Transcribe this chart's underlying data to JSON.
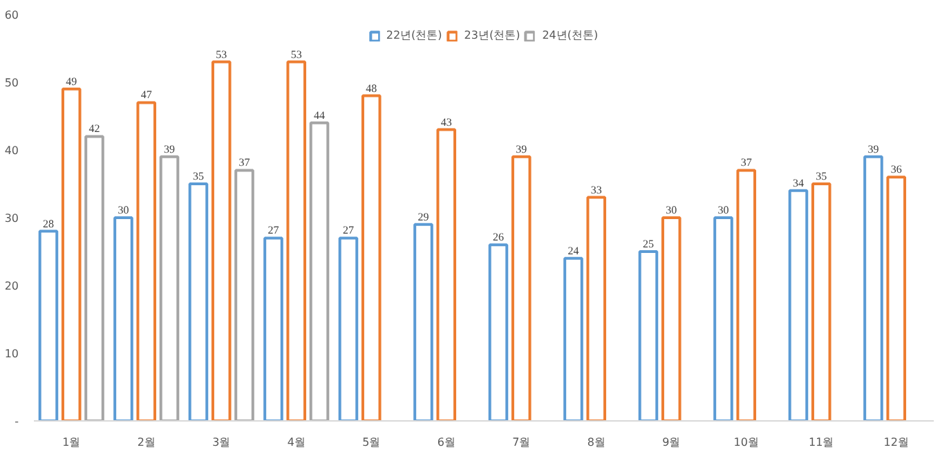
{
  "chart_data": {
    "type": "bar",
    "categories": [
      "1월",
      "2월",
      "3월",
      "4월",
      "5월",
      "6월",
      "7월",
      "8월",
      "9월",
      "10월",
      "11월",
      "12월"
    ],
    "series": [
      {
        "name": "22년(천톤)",
        "color": "#5b9bd5",
        "values": [
          28,
          30,
          35,
          27,
          27,
          29,
          26,
          24,
          25,
          30,
          34,
          39
        ]
      },
      {
        "name": "23년(천톤)",
        "color": "#ed7d31",
        "values": [
          49,
          47,
          53,
          53,
          48,
          43,
          39,
          33,
          30,
          37,
          35,
          36
        ]
      },
      {
        "name": "24년(천톤)",
        "color": "#a5a5a5",
        "values": [
          42,
          39,
          37,
          44,
          null,
          null,
          null,
          null,
          null,
          null,
          null,
          null
        ]
      }
    ],
    "ylim": [
      0,
      60
    ],
    "yticks": [
      {
        "value": 0,
        "label": "-"
      },
      10,
      20,
      30,
      40,
      50,
      60
    ],
    "data_labels": true,
    "legend": "top",
    "grid": false
  }
}
